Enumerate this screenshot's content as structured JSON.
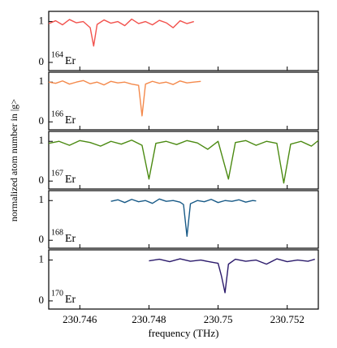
{
  "chart_data": [
    {
      "type": "line",
      "color": "#f2524d",
      "label_mass": "164",
      "label_element": "Er",
      "x": [
        230.7451,
        230.7453,
        230.7455,
        230.7457,
        230.7459,
        230.7461,
        230.7463,
        230.7464,
        230.7465,
        230.7467,
        230.7469,
        230.7471,
        230.7473,
        230.7475,
        230.7477,
        230.7479,
        230.7481,
        230.7483,
        230.7485,
        230.7487,
        230.7489,
        230.7491,
        230.7493
      ],
      "values": [
        0.95,
        1.02,
        0.92,
        1.05,
        0.97,
        1.0,
        0.85,
        0.4,
        0.93,
        1.04,
        0.96,
        1.0,
        0.9,
        1.06,
        0.95,
        1.0,
        0.92,
        1.03,
        0.97,
        0.85,
        1.02,
        0.95,
        1.0
      ],
      "xlim": [
        230.7451,
        230.7529
      ],
      "ylim": [
        -0.2,
        1.25
      ],
      "yticks": [
        0,
        1
      ]
    },
    {
      "type": "line",
      "color": "#f4894b",
      "label_mass": "166",
      "label_element": "Er",
      "x": [
        230.7451,
        230.7453,
        230.7455,
        230.7457,
        230.7459,
        230.7461,
        230.7463,
        230.7465,
        230.7467,
        230.7469,
        230.7471,
        230.7473,
        230.7475,
        230.7477,
        230.7478,
        230.7479,
        230.7481,
        230.7483,
        230.7485,
        230.7487,
        230.7489,
        230.7491,
        230.7493,
        230.7495
      ],
      "values": [
        1.0,
        0.97,
        1.03,
        0.95,
        1.0,
        1.04,
        0.96,
        1.0,
        0.93,
        1.02,
        0.98,
        1.0,
        0.95,
        0.92,
        0.15,
        0.95,
        1.02,
        0.97,
        1.0,
        0.94,
        1.03,
        0.98,
        1.0,
        1.02
      ],
      "xlim": [
        230.7451,
        230.7529
      ],
      "ylim": [
        -0.2,
        1.25
      ],
      "yticks": [
        0,
        1
      ]
    },
    {
      "type": "line",
      "color": "#4b8a12",
      "label_mass": "167",
      "label_element": "Er",
      "ylabel": "normalized atom number in |g>",
      "x": [
        230.7451,
        230.7454,
        230.7457,
        230.746,
        230.7463,
        230.7466,
        230.7469,
        230.7472,
        230.7475,
        230.7478,
        230.748,
        230.7482,
        230.7485,
        230.7488,
        230.7491,
        230.7494,
        230.7497,
        230.75,
        230.7503,
        230.7505,
        230.7508,
        230.7511,
        230.7514,
        230.7517,
        230.7519,
        230.7521,
        230.7524,
        230.7527,
        230.7529
      ],
      "values": [
        0.95,
        1.0,
        0.9,
        1.02,
        0.97,
        0.88,
        1.0,
        0.93,
        1.03,
        0.9,
        0.05,
        0.95,
        1.0,
        0.92,
        1.02,
        0.96,
        0.8,
        1.0,
        0.05,
        0.97,
        1.02,
        0.9,
        1.0,
        0.95,
        -0.05,
        0.93,
        1.0,
        0.88,
        1.02
      ],
      "xlim": [
        230.7451,
        230.7529
      ],
      "ylim": [
        -0.2,
        1.25
      ],
      "yticks": [
        0,
        1
      ]
    },
    {
      "type": "line",
      "color": "#185a87",
      "label_mass": "168",
      "label_element": "Er",
      "x": [
        230.7469,
        230.7471,
        230.7473,
        230.7475,
        230.7477,
        230.7479,
        230.7481,
        230.7483,
        230.7485,
        230.7487,
        230.7489,
        230.749,
        230.7491,
        230.7492,
        230.7494,
        230.7496,
        230.7498,
        230.75,
        230.7502,
        230.7504,
        230.7506,
        230.7508,
        230.751,
        230.7511
      ],
      "values": [
        0.98,
        1.02,
        0.95,
        1.03,
        0.97,
        1.0,
        0.93,
        1.04,
        0.98,
        1.0,
        0.96,
        0.9,
        0.1,
        0.92,
        1.0,
        0.97,
        1.03,
        0.95,
        1.0,
        0.98,
        1.02,
        0.96,
        1.0,
        0.99
      ],
      "xlim": [
        230.7451,
        230.7529
      ],
      "ylim": [
        -0.2,
        1.25
      ],
      "yticks": [
        0,
        1
      ]
    },
    {
      "type": "line",
      "color": "#2b1a6b",
      "label_mass": "170",
      "label_element": "Er",
      "xlabel": "frequency (THz)",
      "x": [
        230.748,
        230.7483,
        230.7486,
        230.7489,
        230.7492,
        230.7495,
        230.7498,
        230.75,
        230.7501,
        230.7502,
        230.7503,
        230.7505,
        230.7508,
        230.7511,
        230.7514,
        230.7517,
        230.752,
        230.7523,
        230.7526,
        230.7528
      ],
      "values": [
        0.98,
        1.02,
        0.96,
        1.03,
        0.97,
        1.0,
        0.95,
        0.92,
        0.6,
        0.2,
        0.9,
        1.02,
        0.97,
        1.0,
        0.9,
        1.03,
        0.96,
        1.0,
        0.97,
        1.02
      ],
      "xlim": [
        230.7451,
        230.7529
      ],
      "ylim": [
        -0.2,
        1.25
      ],
      "yticks": [
        0,
        1
      ],
      "xticks": [
        230.746,
        230.748,
        230.75,
        230.752
      ]
    }
  ]
}
